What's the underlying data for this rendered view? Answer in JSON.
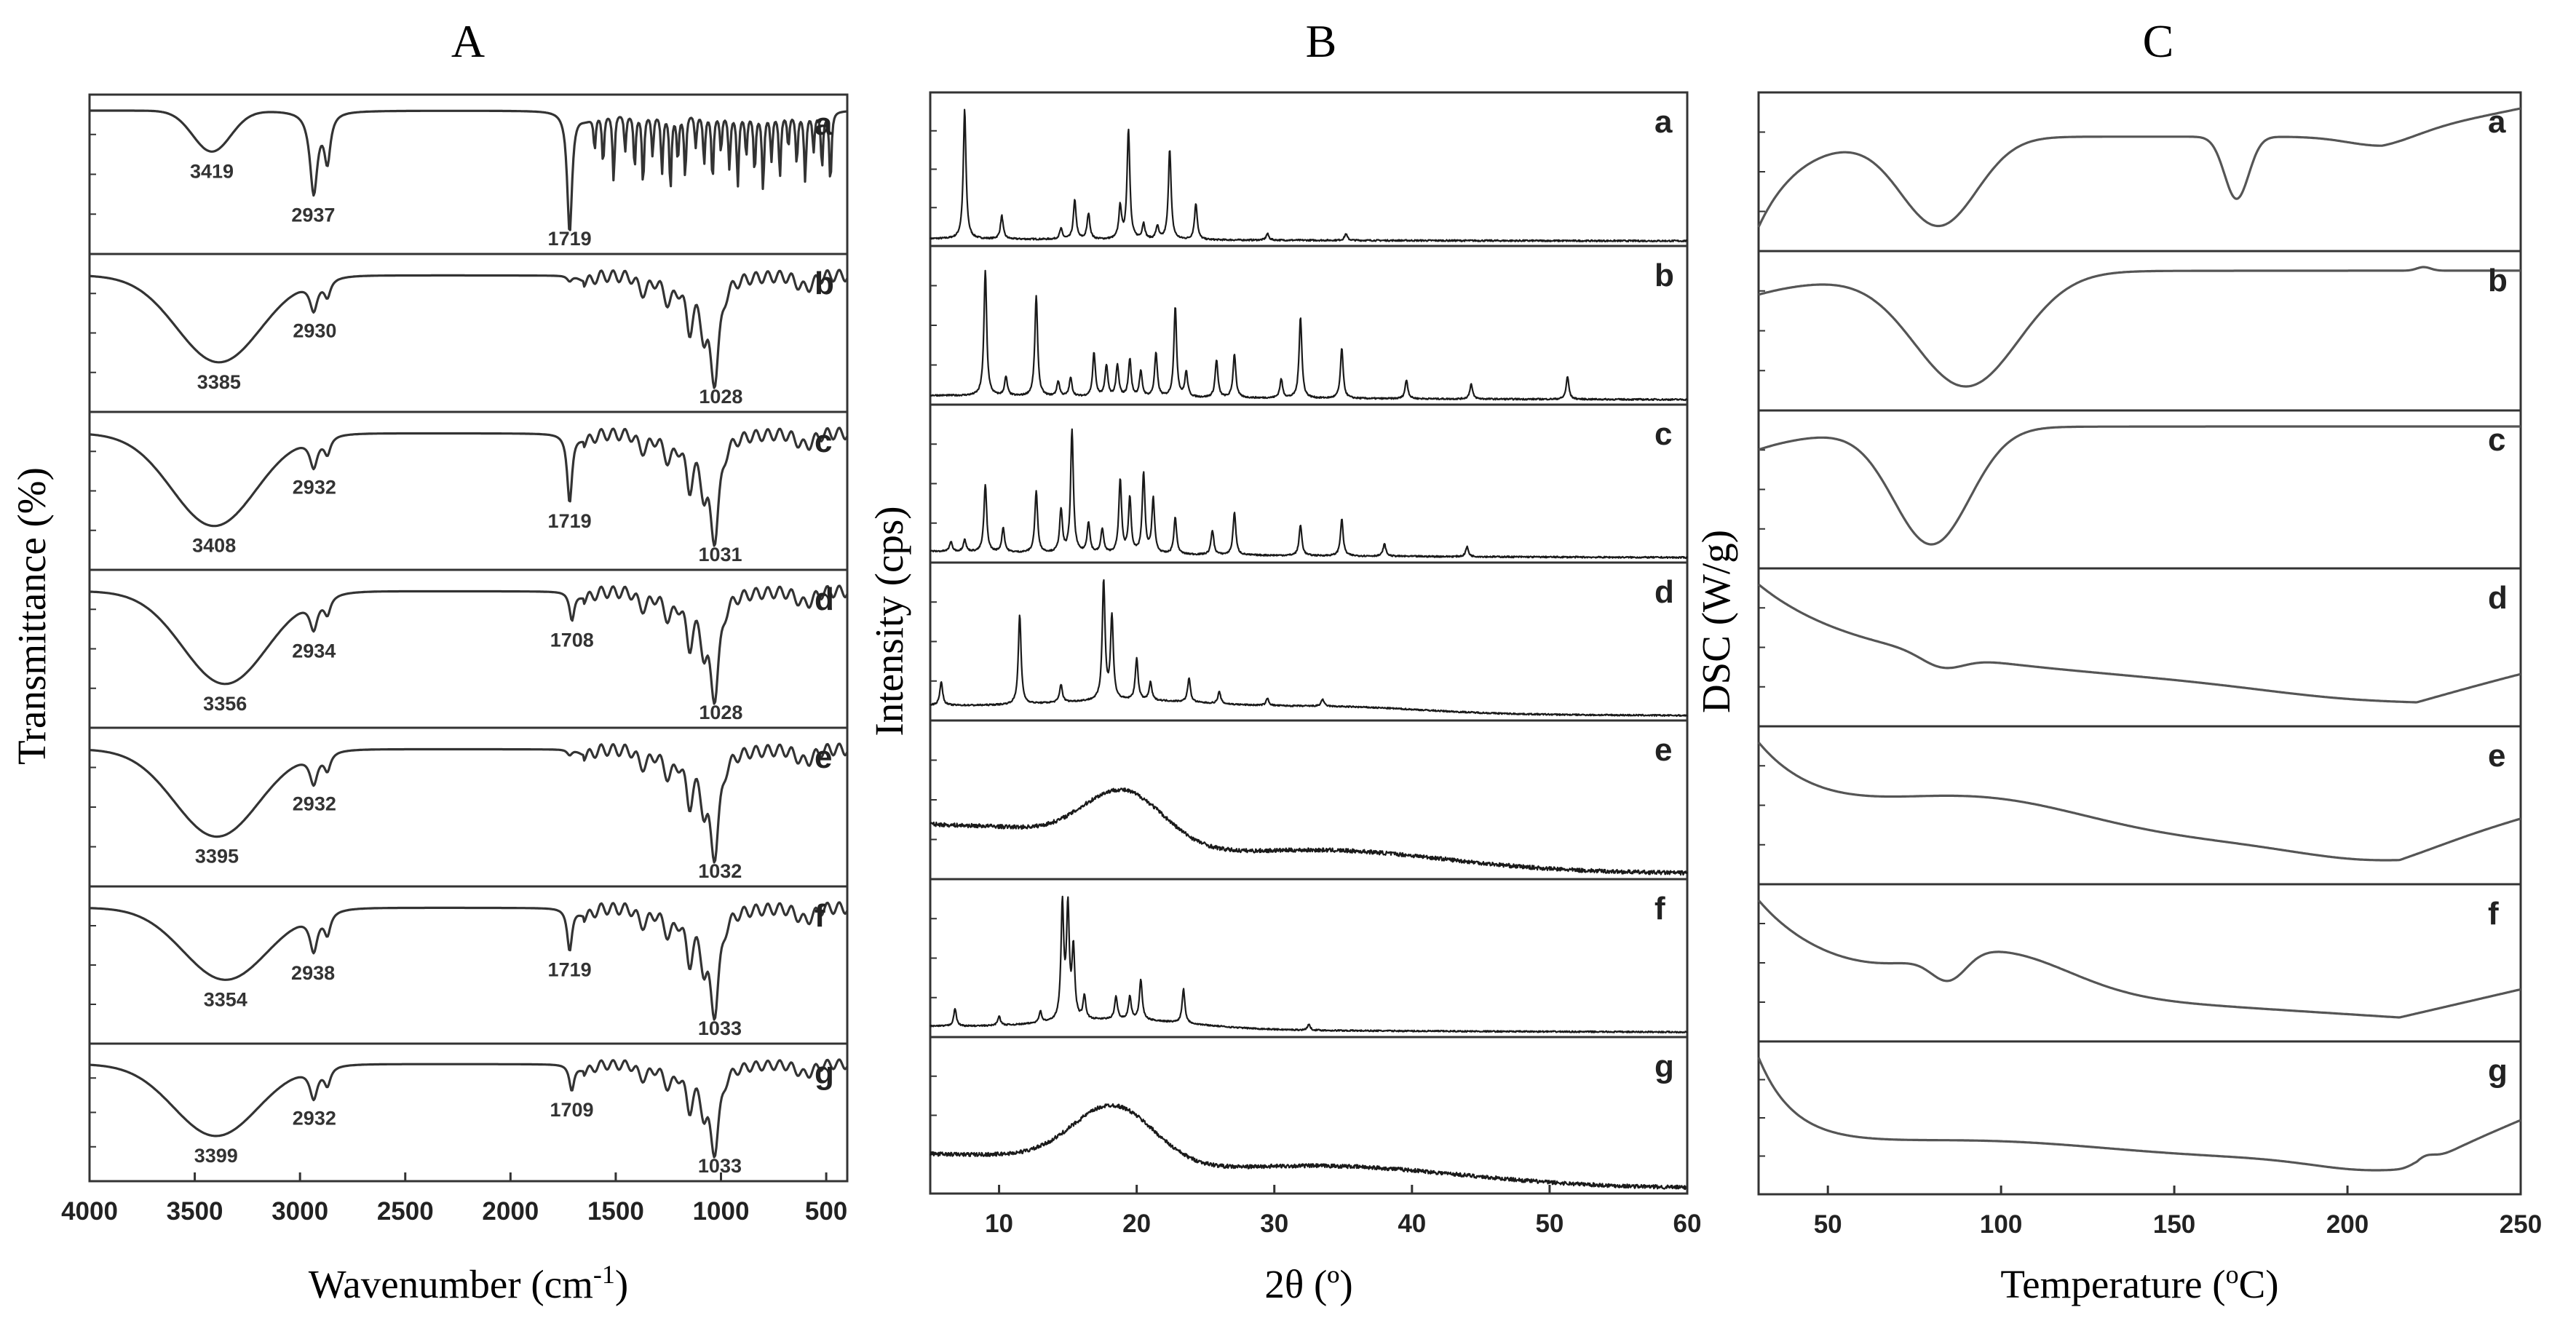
{
  "figure": {
    "panels": [
      "A",
      "B",
      "C"
    ]
  },
  "chart_data": [
    {
      "panel": "A",
      "type": "line",
      "title": "A",
      "xlabel": "Wavenumber (cm-1)",
      "xlabel_parts": {
        "main": "Wavenumber (cm",
        "sup": "-1",
        "end": ")"
      },
      "ylabel": "Transmittance (%)",
      "xlim": [
        4000,
        400
      ],
      "xticks": [
        4000,
        3500,
        3000,
        2500,
        2000,
        1500,
        1000,
        500
      ],
      "grid": false,
      "series": [
        {
          "name": "a",
          "annotations": [
            3419,
            2937,
            1719
          ]
        },
        {
          "name": "b",
          "annotations": [
            3385,
            2930,
            1028
          ]
        },
        {
          "name": "c",
          "annotations": [
            3408,
            2932,
            1719,
            1031
          ]
        },
        {
          "name": "d",
          "annotations": [
            3356,
            2934,
            1708,
            1028
          ]
        },
        {
          "name": "e",
          "annotations": [
            3395,
            2932,
            1032
          ]
        },
        {
          "name": "f",
          "annotations": [
            3354,
            2938,
            1719,
            1033
          ]
        },
        {
          "name": "g",
          "annotations": [
            3399,
            2932,
            1709,
            1033
          ]
        }
      ]
    },
    {
      "panel": "B",
      "type": "line",
      "title": "B",
      "xlabel": "2θ (º)",
      "ylabel": "Intensity (cps)",
      "xlim": [
        5,
        60
      ],
      "xticks": [
        10,
        20,
        30,
        40,
        50,
        60
      ],
      "grid": false,
      "series": [
        {
          "name": "a"
        },
        {
          "name": "b"
        },
        {
          "name": "c"
        },
        {
          "name": "d"
        },
        {
          "name": "e"
        },
        {
          "name": "f"
        },
        {
          "name": "g"
        }
      ]
    },
    {
      "panel": "C",
      "type": "line",
      "title": "C",
      "xlabel": "Temperature (ºC)",
      "xlabel_parts": {
        "main": "Temperature (",
        "sup": "o",
        "end": "C)"
      },
      "ylabel": "DSC (W/g)",
      "xlim": [
        30,
        250
      ],
      "xticks": [
        50,
        100,
        150,
        200,
        250
      ],
      "grid": false,
      "series": [
        {
          "name": "a"
        },
        {
          "name": "b"
        },
        {
          "name": "c"
        },
        {
          "name": "d"
        },
        {
          "name": "e"
        },
        {
          "name": "f"
        },
        {
          "name": "g"
        }
      ]
    }
  ]
}
